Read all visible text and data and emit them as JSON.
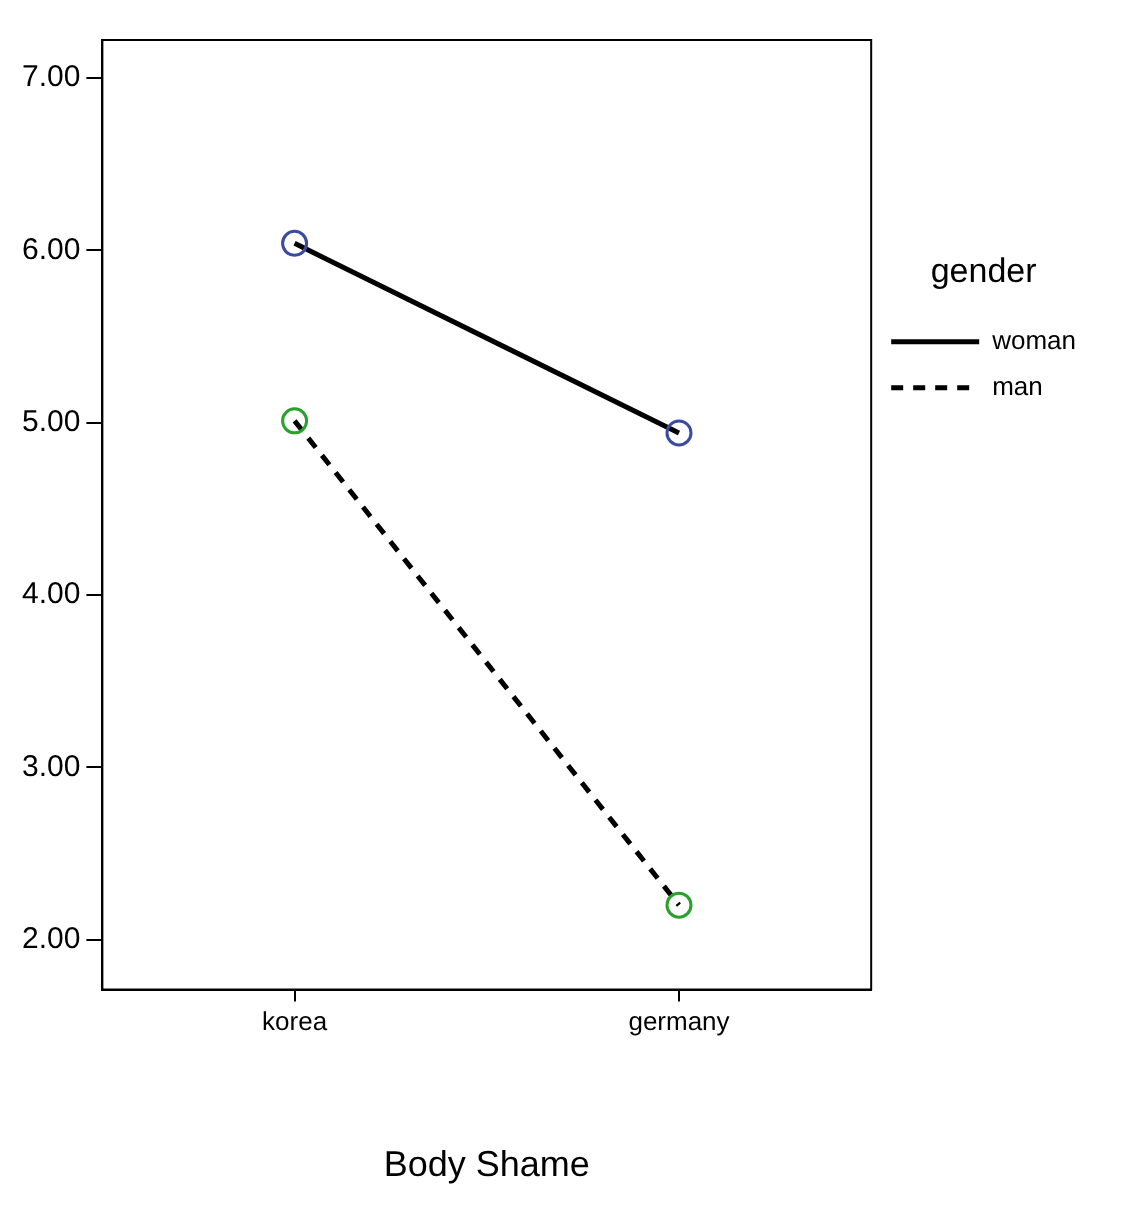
{
  "chart_data": {
    "type": "line",
    "xlabel": "Body Shame",
    "legend_title": "gender",
    "categories": [
      "korea",
      "germany"
    ],
    "series": [
      {
        "name": "woman",
        "color": "#000000",
        "colors": [
          "#3b4ba0",
          "#3b4ba0"
        ],
        "line_style": "solid",
        "values": [
          6.04,
          4.94
        ]
      },
      {
        "name": "man",
        "color": "#000000",
        "colors": [
          "#2ca02c",
          "#2ca02c"
        ],
        "line_style": "dashed",
        "values": [
          5.01,
          2.2
        ]
      }
    ],
    "ylim": [
      1.71,
      7.22
    ],
    "yticks": [
      {
        "value": 2,
        "label": "2.00"
      },
      {
        "value": 3,
        "label": "3.00"
      },
      {
        "value": 4,
        "label": "4.00"
      },
      {
        "value": 5,
        "label": "5.00"
      },
      {
        "value": 6,
        "label": "6.00"
      },
      {
        "value": 7,
        "label": "7.00"
      }
    ],
    "grid": false,
    "legend": "right",
    "marker": "circle"
  }
}
